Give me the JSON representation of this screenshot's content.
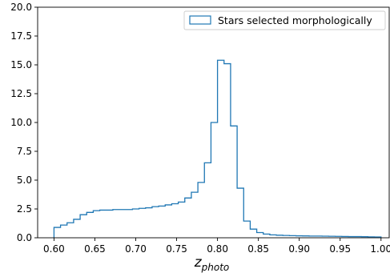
{
  "chart_data": {
    "type": "bar",
    "histogram": true,
    "xlim": [
      0.58,
      1.01
    ],
    "ylim": [
      0,
      20
    ],
    "xticks": [
      "0.60",
      "0.65",
      "0.70",
      "0.75",
      "0.80",
      "0.85",
      "0.90",
      "0.95",
      "1.00"
    ],
    "yticks": [
      "0.0",
      "2.5",
      "5.0",
      "7.5",
      "10.0",
      "12.5",
      "15.0",
      "17.5",
      "20.0"
    ],
    "xlabel": {
      "main": "z",
      "sub": "photo"
    },
    "ylabel": "",
    "legend": {
      "placement": "top-right",
      "entries": [
        "Stars selected morphologically"
      ]
    },
    "grid": false,
    "series": [
      {
        "name": "Stars selected morphologically",
        "color": "#1f77b4",
        "bin_width": 0.008,
        "bin_starts": [
          0.6,
          0.608,
          0.616,
          0.624,
          0.632,
          0.64,
          0.648,
          0.656,
          0.664,
          0.672,
          0.68,
          0.688,
          0.696,
          0.704,
          0.712,
          0.72,
          0.728,
          0.736,
          0.744,
          0.752,
          0.76,
          0.768,
          0.776,
          0.784,
          0.792,
          0.8,
          0.808,
          0.816,
          0.824,
          0.832,
          0.84,
          0.848,
          0.856,
          0.864,
          0.872,
          0.88,
          0.888,
          0.896,
          0.904,
          0.912,
          0.92,
          0.928,
          0.936,
          0.944,
          0.952,
          0.96,
          0.968,
          0.976,
          0.984,
          0.992
        ],
        "values": [
          0.9,
          1.1,
          1.3,
          1.6,
          2.0,
          2.2,
          2.35,
          2.4,
          2.4,
          2.45,
          2.45,
          2.45,
          2.5,
          2.55,
          2.6,
          2.7,
          2.75,
          2.85,
          2.95,
          3.1,
          3.45,
          3.95,
          4.8,
          6.5,
          10.0,
          15.4,
          15.1,
          9.7,
          4.3,
          1.45,
          0.75,
          0.45,
          0.32,
          0.25,
          0.22,
          0.2,
          0.18,
          0.17,
          0.16,
          0.15,
          0.15,
          0.14,
          0.13,
          0.12,
          0.11,
          0.1,
          0.1,
          0.09,
          0.08,
          0.07
        ]
      }
    ]
  }
}
